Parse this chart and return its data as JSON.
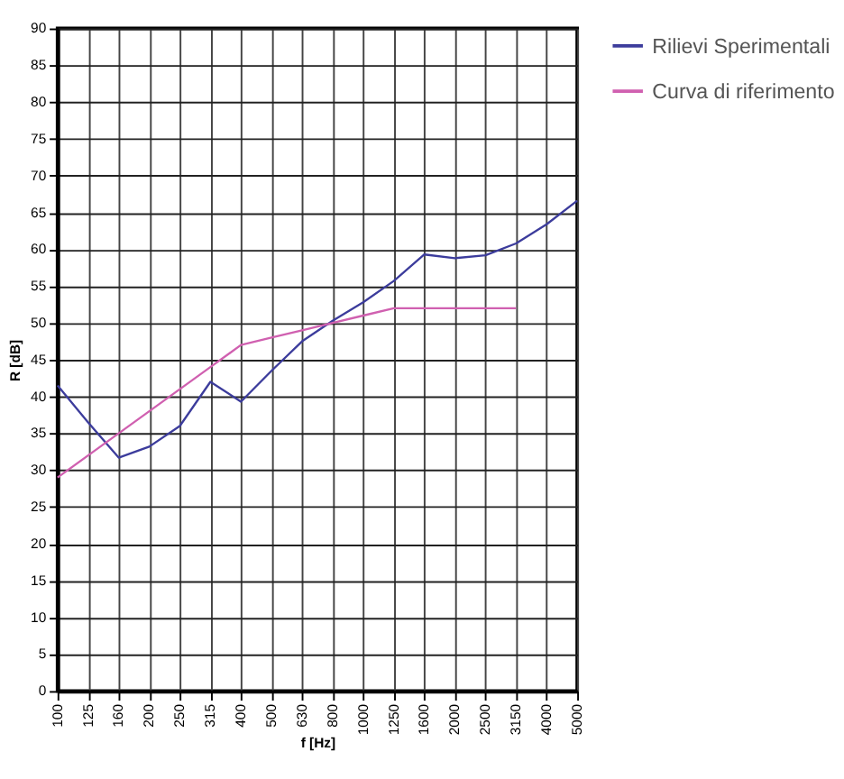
{
  "chart_data": {
    "type": "line",
    "xlabel": "f [Hz]",
    "ylabel": "R [dB]",
    "categories": [
      "100",
      "125",
      "160",
      "200",
      "250",
      "315",
      "400",
      "500",
      "630",
      "800",
      "1000",
      "1250",
      "1600",
      "2000",
      "2500",
      "3150",
      "4000",
      "5000"
    ],
    "series": [
      {
        "name": "Rilievi Sperimentali",
        "color": "#3c3c9c",
        "values": [
          41.5,
          36.5,
          31.7,
          33.2,
          36,
          42,
          39.3,
          43.5,
          47.5,
          50.3,
          52.8,
          55.7,
          59.3,
          58.8,
          59.2,
          60.8,
          63.4,
          66.6
        ]
      },
      {
        "name": "Curva di riferimento",
        "color": "#d060b0",
        "values": [
          29,
          32,
          35,
          38,
          41,
          44,
          47,
          48,
          49,
          50,
          51,
          52,
          52,
          52,
          52,
          52,
          null,
          null
        ]
      }
    ],
    "ylim": [
      0,
      90
    ],
    "yticks": [
      0,
      5,
      10,
      15,
      20,
      25,
      30,
      35,
      40,
      45,
      50,
      55,
      60,
      65,
      70,
      75,
      80,
      85,
      90
    ],
    "grid": true,
    "legend": "right",
    "marker": "none",
    "line_style": "solid"
  }
}
